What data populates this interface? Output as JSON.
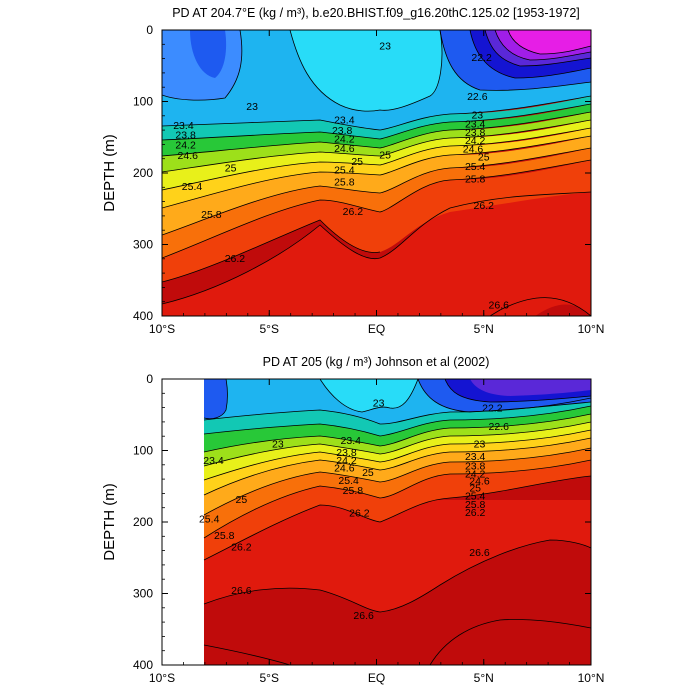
{
  "chart_data": [
    {
      "type": "contour",
      "title": "PD AT 204.7°E (kg / m³), b.e20.BHIST.f09_g16.20thC.125.02 [1953-1972]",
      "ylabel": "DEPTH (m)",
      "x_ticks": [
        "10°S",
        "5°S",
        "EQ",
        "5°N",
        "10°N"
      ],
      "y_ticks": [
        "0",
        "100",
        "200",
        "300",
        "400"
      ],
      "xlim": [
        -10,
        10
      ],
      "ylim": [
        0,
        400
      ],
      "y_reversed": true,
      "contour_labels": [
        {
          "text": "22.2",
          "x": 4.9,
          "y": 38
        },
        {
          "text": "23",
          "x": 0.4,
          "y": 22
        },
        {
          "text": "23",
          "x": -5.8,
          "y": 106
        },
        {
          "text": "22.6",
          "x": 4.7,
          "y": 92
        },
        {
          "text": "23",
          "x": 4.7,
          "y": 118
        },
        {
          "text": "23.4",
          "x": -9.0,
          "y": 133
        },
        {
          "text": "23.8",
          "x": -8.9,
          "y": 146
        },
        {
          "text": "24.2",
          "x": -8.9,
          "y": 160
        },
        {
          "text": "24.6",
          "x": -8.8,
          "y": 175
        },
        {
          "text": "23.4",
          "x": -1.5,
          "y": 125
        },
        {
          "text": "23.8",
          "x": -1.6,
          "y": 140
        },
        {
          "text": "24.2",
          "x": -1.5,
          "y": 152
        },
        {
          "text": "24.6",
          "x": -1.5,
          "y": 165
        },
        {
          "text": "25",
          "x": -0.9,
          "y": 183
        },
        {
          "text": "25.4",
          "x": -1.5,
          "y": 195
        },
        {
          "text": "25.8",
          "x": -1.5,
          "y": 212
        },
        {
          "text": "25",
          "x": 0.4,
          "y": 174
        },
        {
          "text": "23.4",
          "x": 4.6,
          "y": 131
        },
        {
          "text": "23.8",
          "x": 4.6,
          "y": 143
        },
        {
          "text": "24.2",
          "x": 4.6,
          "y": 154
        },
        {
          "text": "24.6",
          "x": 4.5,
          "y": 166
        },
        {
          "text": "25",
          "x": 5.0,
          "y": 177
        },
        {
          "text": "25.4",
          "x": 4.6,
          "y": 190
        },
        {
          "text": "25.8",
          "x": 4.6,
          "y": 208
        },
        {
          "text": "25",
          "x": -6.8,
          "y": 192
        },
        {
          "text": "25.4",
          "x": -8.6,
          "y": 218
        },
        {
          "text": "25.8",
          "x": -7.7,
          "y": 257
        },
        {
          "text": "26.2",
          "x": -1.1,
          "y": 253
        },
        {
          "text": "26.2",
          "x": 5.0,
          "y": 245
        },
        {
          "text": "26.2",
          "x": -6.6,
          "y": 319
        },
        {
          "text": "26.6",
          "x": 5.7,
          "y": 384
        }
      ]
    },
    {
      "type": "contour",
      "title": "PD AT 205 (kg / m³) Johnson et al (2002)",
      "ylabel": "DEPTH (m)",
      "x_ticks": [
        "10°S",
        "5°S",
        "EQ",
        "5°N",
        "10°N"
      ],
      "y_ticks": [
        "0",
        "100",
        "200",
        "300",
        "400"
      ],
      "xlim": [
        -10,
        10
      ],
      "ylim": [
        0,
        400
      ],
      "y_reversed": true,
      "data_xlim": [
        -8.0,
        10
      ],
      "contour_labels": [
        {
          "text": "22.2",
          "x": 5.4,
          "y": 40
        },
        {
          "text": "23",
          "x": 0.1,
          "y": 33
        },
        {
          "text": "22.6",
          "x": 5.7,
          "y": 66
        },
        {
          "text": "23",
          "x": -4.6,
          "y": 90
        },
        {
          "text": "23",
          "x": 4.8,
          "y": 90
        },
        {
          "text": "23.4",
          "x": -7.6,
          "y": 113
        },
        {
          "text": "23.4",
          "x": -1.2,
          "y": 85
        },
        {
          "text": "23.8",
          "x": -1.4,
          "y": 102
        },
        {
          "text": "24.2",
          "x": -1.4,
          "y": 113
        },
        {
          "text": "24.6",
          "x": -1.5,
          "y": 124
        },
        {
          "text": "25",
          "x": -0.4,
          "y": 130
        },
        {
          "text": "25.4",
          "x": -1.3,
          "y": 141
        },
        {
          "text": "25.8",
          "x": -1.1,
          "y": 155
        },
        {
          "text": "23.4",
          "x": 4.6,
          "y": 108
        },
        {
          "text": "23.8",
          "x": 4.6,
          "y": 121
        },
        {
          "text": "24.2",
          "x": 4.6,
          "y": 132
        },
        {
          "text": "24.6",
          "x": 4.8,
          "y": 142
        },
        {
          "text": "25",
          "x": 4.6,
          "y": 152
        },
        {
          "text": "25.4",
          "x": 4.6,
          "y": 163
        },
        {
          "text": "25.8",
          "x": 4.6,
          "y": 175
        },
        {
          "text": "25",
          "x": -6.3,
          "y": 168
        },
        {
          "text": "25.4",
          "x": -7.8,
          "y": 195
        },
        {
          "text": "25.8",
          "x": -7.1,
          "y": 218
        },
        {
          "text": "26.2",
          "x": -6.3,
          "y": 234
        },
        {
          "text": "26.2",
          "x": -0.8,
          "y": 187
        },
        {
          "text": "26.2",
          "x": 4.6,
          "y": 186
        },
        {
          "text": "26.6",
          "x": 4.8,
          "y": 242
        },
        {
          "text": "26.6",
          "x": -6.3,
          "y": 295
        },
        {
          "text": "26.6",
          "x": -0.6,
          "y": 330
        }
      ]
    }
  ]
}
